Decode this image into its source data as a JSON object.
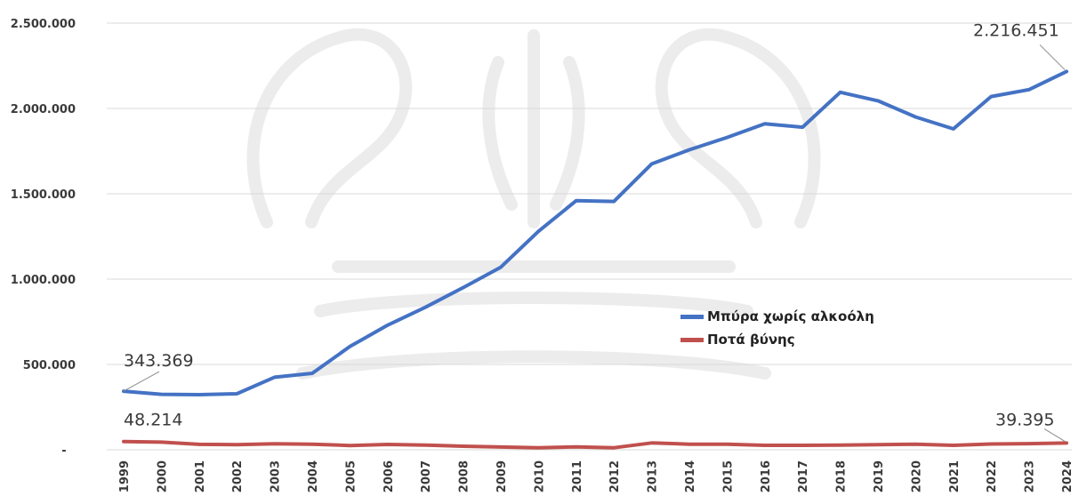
{
  "chart_data": {
    "type": "line",
    "x": [
      "1999",
      "2000",
      "2001",
      "2002",
      "2003",
      "2004",
      "2005",
      "2006",
      "2007",
      "2008",
      "2009",
      "2010",
      "2011",
      "2012",
      "2013",
      "2014",
      "2015",
      "2016",
      "2017",
      "2018",
      "2019",
      "2020",
      "2021",
      "2022",
      "2023",
      "2024"
    ],
    "y_ticks": [
      "2.500.000",
      "2.000.000",
      "1.500.000",
      "1.000.000",
      "500.000",
      "-"
    ],
    "ylim": [
      0,
      2500000
    ],
    "grid": true,
    "legend_position": "center-right",
    "series": [
      {
        "name": "Μπύρα χωρίς αλκοόλη",
        "color": "#4472c4",
        "values": [
          343369,
          325000,
          323000,
          328000,
          425000,
          448000,
          605000,
          730000,
          835000,
          950000,
          1070000,
          1280000,
          1460000,
          1455000,
          1675000,
          1758000,
          1830000,
          1910000,
          1890000,
          2095000,
          2045000,
          1950000,
          1880000,
          2070000,
          2110000,
          2216451
        ]
      },
      {
        "name": "Ποτά βύνης",
        "color": "#c0504d",
        "values": [
          48214,
          45000,
          32000,
          30000,
          35000,
          33000,
          25000,
          31000,
          27000,
          21000,
          16000,
          12000,
          17000,
          12000,
          40000,
          33000,
          33000,
          26000,
          26000,
          27000,
          30000,
          33000,
          26000,
          34000,
          36000,
          39395
        ]
      }
    ],
    "data_labels": [
      {
        "series": 0,
        "index": 0,
        "text": "343.369"
      },
      {
        "series": 0,
        "index": 25,
        "text": "2.216.451"
      },
      {
        "series": 1,
        "index": 0,
        "text": "48.214"
      },
      {
        "series": 1,
        "index": 25,
        "text": "39.395"
      }
    ]
  }
}
